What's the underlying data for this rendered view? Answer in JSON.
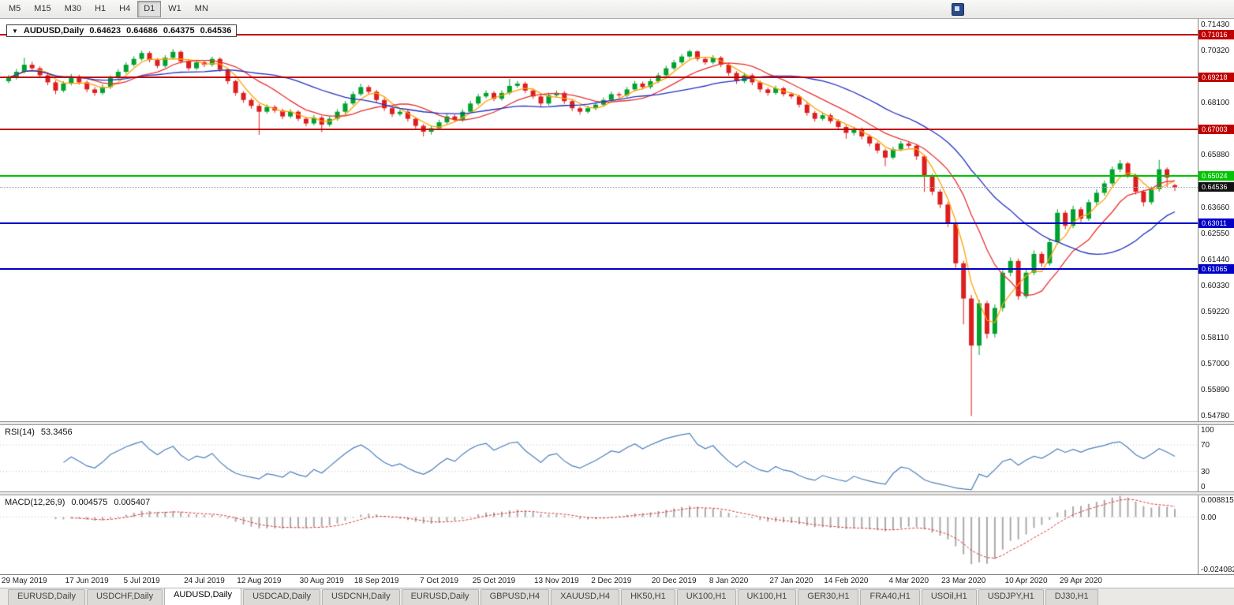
{
  "toolbar": {
    "timeframes": [
      "M5",
      "M15",
      "M30",
      "H1",
      "H4",
      "D1",
      "W1",
      "MN"
    ],
    "active": "D1"
  },
  "chart_header": {
    "dropdown_icon": "▼",
    "symbol": "AUDUSD,Daily",
    "open": "0.64623",
    "high": "0.64686",
    "low": "0.64375",
    "close": "0.64536"
  },
  "rsi_display": {
    "label": "RSI(14)",
    "value": "53.3456"
  },
  "macd_display": {
    "label": "MACD(12,26,9)",
    "main": "0.004575",
    "signal": "0.005407"
  },
  "tabs": {
    "active_index": 2,
    "items": [
      "EURUSD,Daily",
      "USDCHF,Daily",
      "AUDUSD,Daily",
      "USDCAD,Daily",
      "USDCNH,Daily",
      "EURUSD,Daily",
      "GBPUSD,H4",
      "XAUUSD,H4",
      "HK50,H1",
      "UK100,H1",
      "UK100,H1",
      "GER30,H1",
      "FRA40,H1",
      "USOil,H1",
      "USDJPY,H1",
      "DJ30,H1"
    ]
  },
  "chart_data": {
    "type": "candlestick",
    "title": "AUDUSD,Daily",
    "colors": {
      "up": "#00A12F",
      "down": "#DC1E1E"
    },
    "y_axis": {
      "min": 0.5458,
      "max": 0.717,
      "tick_labels": [
        "0.71430",
        "0.70320",
        "0.69210",
        "0.68100",
        "0.66990",
        "0.65880",
        "0.64770",
        "0.63660",
        "0.62550",
        "0.61440",
        "0.60330",
        "0.59220",
        "0.58110",
        "0.57000",
        "0.55890",
        "0.54780"
      ]
    },
    "hlines": [
      {
        "label": "0.71016",
        "value": 0.71016,
        "color": "#C00000",
        "type": "resistance"
      },
      {
        "label": "0.69218",
        "value": 0.69218,
        "color": "#C00000",
        "type": "resistance"
      },
      {
        "label": "0.67003",
        "value": 0.67003,
        "color": "#C00000",
        "type": "resistance"
      },
      {
        "label": "0.65024",
        "value": 0.65024,
        "color": "#00C400",
        "type": "key-level"
      },
      {
        "label": "0.63011",
        "value": 0.63011,
        "color": "#0000C8",
        "type": "support"
      },
      {
        "label": "0.61065",
        "value": 0.61065,
        "color": "#0000C8",
        "type": "support"
      }
    ],
    "current_price": {
      "label": "0.64536",
      "value": 0.64536,
      "badge_bg": "#111111",
      "line_color": "#A9A9A9"
    },
    "moving_averages": [
      {
        "period": 4,
        "color": "#FFA000"
      },
      {
        "period": 10,
        "color": "#E83030"
      },
      {
        "period": 22,
        "color": "#2030C0"
      }
    ],
    "rsi": {
      "calc_period": 7,
      "color": "#4A7EBB",
      "levels": [
        70,
        30
      ],
      "axis_labels": [
        "100",
        "70",
        "30",
        "0"
      ]
    },
    "macd": {
      "calc_fast": 6,
      "calc_slow": 13,
      "calc_signal": 5,
      "hist_color": "#A9A9A9",
      "signal_color": "#E03030",
      "scale_max": 0.0095,
      "scale_min": -0.025,
      "axis_labels": [
        {
          "text": "0.008815",
          "value": 0.008815
        },
        {
          "text": "0.00",
          "value": 0
        },
        {
          "text": "-0.024082",
          "value": -0.024082
        }
      ]
    },
    "x_labels": [
      {
        "text": "29 May 2019",
        "i": 2
      },
      {
        "text": "17 Jun 2019",
        "i": 10
      },
      {
        "text": "5 Jul 2019",
        "i": 17
      },
      {
        "text": "24 Jul 2019",
        "i": 25
      },
      {
        "text": "12 Aug 2019",
        "i": 32
      },
      {
        "text": "30 Aug 2019",
        "i": 40
      },
      {
        "text": "18 Sep 2019",
        "i": 47
      },
      {
        "text": "7 Oct 2019",
        "i": 55
      },
      {
        "text": "25 Oct 2019",
        "i": 62
      },
      {
        "text": "13 Nov 2019",
        "i": 70
      },
      {
        "text": "2 Dec 2019",
        "i": 77
      },
      {
        "text": "20 Dec 2019",
        "i": 85
      },
      {
        "text": "8 Jan 2020",
        "i": 92
      },
      {
        "text": "27 Jan 2020",
        "i": 100
      },
      {
        "text": "14 Feb 2020",
        "i": 107
      },
      {
        "text": "4 Mar 2020",
        "i": 115
      },
      {
        "text": "23 Mar 2020",
        "i": 122
      },
      {
        "text": "10 Apr 2020",
        "i": 130
      },
      {
        "text": "29 Apr 2020",
        "i": 137
      }
    ],
    "candles": [
      [
        0.6905,
        0.6932,
        0.6896,
        0.692
      ],
      [
        0.692,
        0.6957,
        0.6912,
        0.6945
      ],
      [
        0.6945,
        0.7005,
        0.6938,
        0.6975
      ],
      [
        0.6975,
        0.6988,
        0.695,
        0.696
      ],
      [
        0.696,
        0.6968,
        0.692,
        0.693
      ],
      [
        0.693,
        0.6938,
        0.6888,
        0.69
      ],
      [
        0.69,
        0.6908,
        0.685,
        0.6865
      ],
      [
        0.6865,
        0.6905,
        0.6857,
        0.6895
      ],
      [
        0.6895,
        0.6936,
        0.6887,
        0.6925
      ],
      [
        0.6925,
        0.6933,
        0.689,
        0.69
      ],
      [
        0.69,
        0.6908,
        0.6858,
        0.687
      ],
      [
        0.687,
        0.688,
        0.6843,
        0.6855
      ],
      [
        0.6855,
        0.6892,
        0.6847,
        0.688
      ],
      [
        0.688,
        0.693,
        0.6872,
        0.692
      ],
      [
        0.692,
        0.6956,
        0.6912,
        0.6945
      ],
      [
        0.6945,
        0.6986,
        0.6937,
        0.6975
      ],
      [
        0.6975,
        0.7011,
        0.6967,
        0.7
      ],
      [
        0.7,
        0.7035,
        0.6992,
        0.7025
      ],
      [
        0.7025,
        0.7032,
        0.6985,
        0.6995
      ],
      [
        0.6995,
        0.7003,
        0.696,
        0.697
      ],
      [
        0.697,
        0.7016,
        0.6962,
        0.7005
      ],
      [
        0.7005,
        0.7042,
        0.6997,
        0.703
      ],
      [
        0.703,
        0.7037,
        0.698,
        0.699
      ],
      [
        0.699,
        0.6998,
        0.695,
        0.696
      ],
      [
        0.696,
        0.6996,
        0.6952,
        0.6985
      ],
      [
        0.6985,
        0.6993,
        0.6965,
        0.6975
      ],
      [
        0.6975,
        0.701,
        0.6967,
        0.7
      ],
      [
        0.7,
        0.7007,
        0.6945,
        0.6955
      ],
      [
        0.6955,
        0.6962,
        0.6893,
        0.6905
      ],
      [
        0.6905,
        0.6912,
        0.6843,
        0.6855
      ],
      [
        0.6855,
        0.6863,
        0.6813,
        0.6825
      ],
      [
        0.6825,
        0.6833,
        0.6788,
        0.68
      ],
      [
        0.68,
        0.6808,
        0.6677,
        0.6775
      ],
      [
        0.6775,
        0.6806,
        0.6767,
        0.6795
      ],
      [
        0.6795,
        0.6803,
        0.677,
        0.678
      ],
      [
        0.678,
        0.6788,
        0.6743,
        0.6755
      ],
      [
        0.6755,
        0.6786,
        0.6747,
        0.6775
      ],
      [
        0.6775,
        0.6782,
        0.6735,
        0.6745
      ],
      [
        0.6745,
        0.6753,
        0.6713,
        0.6725
      ],
      [
        0.6725,
        0.6761,
        0.6717,
        0.675
      ],
      [
        0.675,
        0.6757,
        0.6688,
        0.672
      ],
      [
        0.672,
        0.6756,
        0.6712,
        0.6745
      ],
      [
        0.6745,
        0.6786,
        0.6737,
        0.6775
      ],
      [
        0.6775,
        0.6821,
        0.6767,
        0.681
      ],
      [
        0.681,
        0.6861,
        0.6802,
        0.685
      ],
      [
        0.685,
        0.6895,
        0.6842,
        0.688
      ],
      [
        0.688,
        0.6888,
        0.685,
        0.686
      ],
      [
        0.686,
        0.6868,
        0.6813,
        0.6825
      ],
      [
        0.6825,
        0.6833,
        0.6778,
        0.679
      ],
      [
        0.679,
        0.6798,
        0.6753,
        0.6765
      ],
      [
        0.6765,
        0.6786,
        0.6757,
        0.6775
      ],
      [
        0.6775,
        0.6782,
        0.6733,
        0.6745
      ],
      [
        0.6745,
        0.6753,
        0.6703,
        0.6715
      ],
      [
        0.6715,
        0.6723,
        0.667,
        0.669
      ],
      [
        0.669,
        0.6716,
        0.6678,
        0.6705
      ],
      [
        0.6705,
        0.6741,
        0.6697,
        0.673
      ],
      [
        0.673,
        0.6766,
        0.6722,
        0.6755
      ],
      [
        0.6755,
        0.6763,
        0.673,
        0.674
      ],
      [
        0.674,
        0.6786,
        0.6732,
        0.6775
      ],
      [
        0.6775,
        0.6821,
        0.6767,
        0.681
      ],
      [
        0.681,
        0.6851,
        0.6802,
        0.684
      ],
      [
        0.684,
        0.6866,
        0.6832,
        0.6855
      ],
      [
        0.6855,
        0.6863,
        0.682,
        0.683
      ],
      [
        0.683,
        0.6866,
        0.6822,
        0.6855
      ],
      [
        0.6855,
        0.6915,
        0.6847,
        0.6885
      ],
      [
        0.6885,
        0.6906,
        0.6877,
        0.6895
      ],
      [
        0.6895,
        0.6903,
        0.6855,
        0.6865
      ],
      [
        0.6865,
        0.6873,
        0.683,
        0.684
      ],
      [
        0.684,
        0.6848,
        0.6798,
        0.681
      ],
      [
        0.681,
        0.6856,
        0.6802,
        0.6845
      ],
      [
        0.6845,
        0.6866,
        0.6837,
        0.6855
      ],
      [
        0.6855,
        0.6863,
        0.6808,
        0.682
      ],
      [
        0.682,
        0.6828,
        0.6778,
        0.679
      ],
      [
        0.679,
        0.6798,
        0.6763,
        0.6775
      ],
      [
        0.6775,
        0.6801,
        0.6767,
        0.679
      ],
      [
        0.679,
        0.6816,
        0.6782,
        0.6805
      ],
      [
        0.6805,
        0.6836,
        0.6797,
        0.6825
      ],
      [
        0.6825,
        0.6861,
        0.6817,
        0.685
      ],
      [
        0.685,
        0.6858,
        0.6835,
        0.6845
      ],
      [
        0.6845,
        0.6881,
        0.6837,
        0.687
      ],
      [
        0.687,
        0.6906,
        0.6862,
        0.6895
      ],
      [
        0.6895,
        0.6903,
        0.687,
        0.688
      ],
      [
        0.688,
        0.6916,
        0.6872,
        0.6905
      ],
      [
        0.6905,
        0.6941,
        0.6897,
        0.693
      ],
      [
        0.693,
        0.6971,
        0.6922,
        0.696
      ],
      [
        0.696,
        0.6996,
        0.6952,
        0.6985
      ],
      [
        0.6985,
        0.7021,
        0.6977,
        0.701
      ],
      [
        0.701,
        0.704,
        0.7002,
        0.7032
      ],
      [
        0.7032,
        0.7036,
        0.699,
        0.7
      ],
      [
        0.7,
        0.7008,
        0.6975,
        0.6985
      ],
      [
        0.6985,
        0.7016,
        0.6977,
        0.7005
      ],
      [
        0.7005,
        0.7012,
        0.6965,
        0.6975
      ],
      [
        0.6975,
        0.6982,
        0.6928,
        0.694
      ],
      [
        0.694,
        0.6948,
        0.6893,
        0.6905
      ],
      [
        0.6905,
        0.6941,
        0.6897,
        0.693
      ],
      [
        0.693,
        0.6938,
        0.6888,
        0.69
      ],
      [
        0.69,
        0.6908,
        0.6858,
        0.687
      ],
      [
        0.687,
        0.6878,
        0.6843,
        0.6855
      ],
      [
        0.6855,
        0.6886,
        0.6847,
        0.6875
      ],
      [
        0.6875,
        0.6882,
        0.684,
        0.685
      ],
      [
        0.685,
        0.6858,
        0.683,
        0.684
      ],
      [
        0.684,
        0.6848,
        0.6793,
        0.6805
      ],
      [
        0.6805,
        0.6813,
        0.6758,
        0.677
      ],
      [
        0.677,
        0.6778,
        0.6733,
        0.6745
      ],
      [
        0.6745,
        0.6771,
        0.6737,
        0.676
      ],
      [
        0.676,
        0.6768,
        0.6725,
        0.6735
      ],
      [
        0.6735,
        0.6743,
        0.6698,
        0.671
      ],
      [
        0.671,
        0.6718,
        0.666,
        0.6685
      ],
      [
        0.6685,
        0.6711,
        0.6673,
        0.67
      ],
      [
        0.67,
        0.6708,
        0.6658,
        0.667
      ],
      [
        0.667,
        0.6678,
        0.6628,
        0.664
      ],
      [
        0.664,
        0.6648,
        0.6598,
        0.661
      ],
      [
        0.661,
        0.6618,
        0.6543,
        0.658
      ],
      [
        0.658,
        0.6626,
        0.6572,
        0.6615
      ],
      [
        0.6615,
        0.6651,
        0.6607,
        0.664
      ],
      [
        0.664,
        0.6648,
        0.662,
        0.663
      ],
      [
        0.663,
        0.6637,
        0.657,
        0.6585
      ],
      [
        0.6585,
        0.6592,
        0.6434,
        0.65
      ],
      [
        0.65,
        0.651,
        0.642,
        0.6435
      ],
      [
        0.6435,
        0.6445,
        0.6365,
        0.638
      ],
      [
        0.638,
        0.639,
        0.6285,
        0.63
      ],
      [
        0.63,
        0.631,
        0.611,
        0.613
      ],
      [
        0.613,
        0.614,
        0.587,
        0.598
      ],
      [
        0.598,
        0.5995,
        0.548,
        0.578
      ],
      [
        0.578,
        0.5975,
        0.574,
        0.596
      ],
      [
        0.596,
        0.597,
        0.581,
        0.583
      ],
      [
        0.583,
        0.5955,
        0.5815,
        0.594
      ],
      [
        0.594,
        0.6105,
        0.5925,
        0.609
      ],
      [
        0.609,
        0.6155,
        0.6075,
        0.614
      ],
      [
        0.614,
        0.615,
        0.5975,
        0.599
      ],
      [
        0.599,
        0.6105,
        0.598,
        0.609
      ],
      [
        0.609,
        0.6185,
        0.608,
        0.617
      ],
      [
        0.617,
        0.618,
        0.6115,
        0.613
      ],
      [
        0.613,
        0.6235,
        0.612,
        0.622
      ],
      [
        0.622,
        0.636,
        0.621,
        0.6345
      ],
      [
        0.6345,
        0.6355,
        0.6275,
        0.629
      ],
      [
        0.629,
        0.6375,
        0.628,
        0.636
      ],
      [
        0.636,
        0.637,
        0.6305,
        0.632
      ],
      [
        0.632,
        0.6402,
        0.631,
        0.639
      ],
      [
        0.639,
        0.6445,
        0.6378,
        0.643
      ],
      [
        0.643,
        0.6482,
        0.6418,
        0.647
      ],
      [
        0.647,
        0.6542,
        0.646,
        0.653
      ],
      [
        0.653,
        0.657,
        0.6518,
        0.6555
      ],
      [
        0.6555,
        0.6562,
        0.6493,
        0.6505
      ],
      [
        0.6505,
        0.6512,
        0.6423,
        0.6435
      ],
      [
        0.6435,
        0.6443,
        0.6372,
        0.639
      ],
      [
        0.639,
        0.6457,
        0.638,
        0.6445
      ],
      [
        0.6445,
        0.657,
        0.6435,
        0.653
      ],
      [
        0.653,
        0.6538,
        0.6455,
        0.6495
      ],
      [
        0.64623,
        0.64686,
        0.64375,
        0.64536
      ]
    ]
  }
}
